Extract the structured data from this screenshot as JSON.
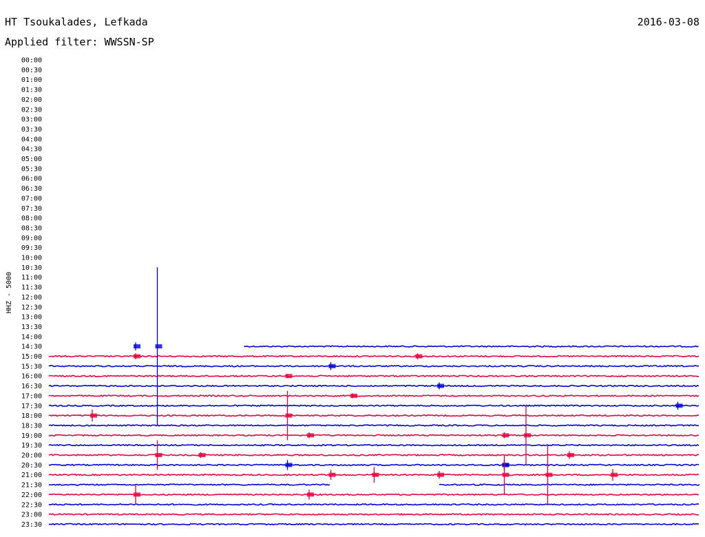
{
  "header": {
    "station": "HT Tsoukalades, Lefkada",
    "date": "2016-03-08",
    "filter_label": "Applied filter: WWSSN-SP"
  },
  "chart_data": {
    "type": "line",
    "title": "HT Tsoukalades, Lefkada",
    "subtitle": "Applied filter: WWSSN-SP",
    "date": "2016-03-08",
    "ylabel": "HHZ - 5000",
    "xlabel": "",
    "minutes_per_row": 30,
    "row_labels": [
      "00:00",
      "00:30",
      "01:00",
      "01:30",
      "02:00",
      "02:30",
      "03:00",
      "03:30",
      "04:00",
      "04:30",
      "05:00",
      "05:30",
      "06:00",
      "06:30",
      "07:00",
      "07:30",
      "08:00",
      "08:30",
      "09:00",
      "09:30",
      "10:00",
      "10:30",
      "11:00",
      "11:30",
      "12:00",
      "12:30",
      "13:00",
      "13:30",
      "14:00",
      "14:30",
      "15:00",
      "15:30",
      "16:00",
      "16:30",
      "17:00",
      "17:30",
      "18:00",
      "18:30",
      "19:00",
      "19:30",
      "20:00",
      "20:30",
      "21:00",
      "21:30",
      "22:00",
      "22:30",
      "23:00",
      "23:30"
    ],
    "data_start": "14:39",
    "gaps": [
      {
        "start": "21:43",
        "end": "21:48"
      }
    ],
    "trace_colors": [
      "#e8003c",
      "#0000dd"
    ],
    "events": [
      {
        "time": "14:34",
        "amplitude_rows": 0.4
      },
      {
        "time": "14:35",
        "amplitude_rows": 8.0
      },
      {
        "time": "15:04",
        "amplitude_rows": 0.3
      },
      {
        "time": "15:17",
        "amplitude_rows": 0.3
      },
      {
        "time": "15:43",
        "amplitude_rows": 0.4
      },
      {
        "time": "16:11",
        "amplitude_rows": 0.2
      },
      {
        "time": "16:48",
        "amplitude_rows": 0.35
      },
      {
        "time": "17:14",
        "amplitude_rows": 0.25
      },
      {
        "time": "17:59",
        "amplitude_rows": 0.4
      },
      {
        "time": "18:02",
        "amplitude_rows": 0.6
      },
      {
        "time": "18:11",
        "amplitude_rows": 2.5
      },
      {
        "time": "19:12",
        "amplitude_rows": 0.3
      },
      {
        "time": "19:21",
        "amplitude_rows": 0.3
      },
      {
        "time": "19:22",
        "amplitude_rows": 3.0
      },
      {
        "time": "20:05",
        "amplitude_rows": 1.5
      },
      {
        "time": "20:07",
        "amplitude_rows": 0.3
      },
      {
        "time": "20:24",
        "amplitude_rows": 0.4
      },
      {
        "time": "20:41",
        "amplitude_rows": 0.5
      },
      {
        "time": "20:51",
        "amplitude_rows": 0.6
      },
      {
        "time": "20:51",
        "amplitude_rows": 0.4
      },
      {
        "time": "21:13",
        "amplitude_rows": 0.5
      },
      {
        "time": "21:15",
        "amplitude_rows": 0.8
      },
      {
        "time": "21:18",
        "amplitude_rows": 0.4
      },
      {
        "time": "21:21",
        "amplitude_rows": 2.0
      },
      {
        "time": "21:23",
        "amplitude_rows": 3.0
      },
      {
        "time": "21:26",
        "amplitude_rows": 0.6
      },
      {
        "time": "22:04",
        "amplitude_rows": 1.0
      },
      {
        "time": "22:12",
        "amplitude_rows": 0.5
      }
    ]
  }
}
